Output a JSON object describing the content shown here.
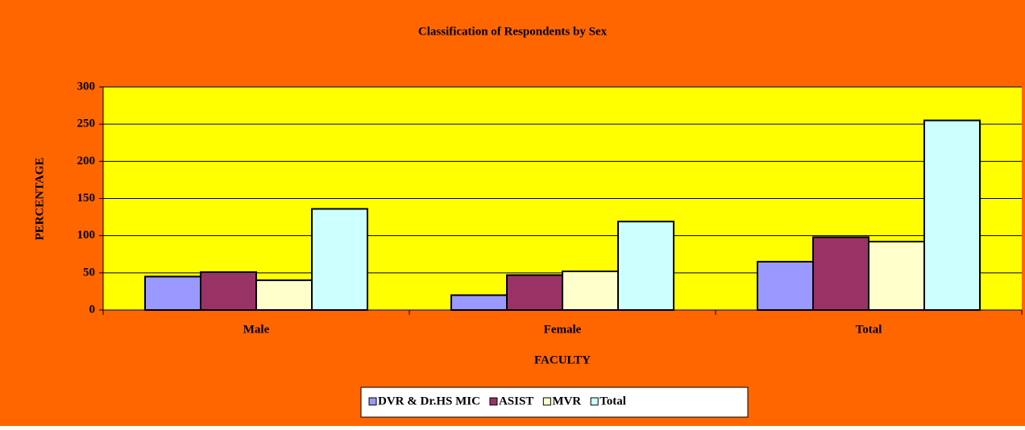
{
  "chart_data": {
    "type": "bar",
    "title": "Classification of Respondents by Sex",
    "x_label": "FACULTY",
    "y_label": "PERCENTAGE",
    "categories": [
      "Male",
      "Female",
      "Total"
    ],
    "series": [
      {
        "name": "DVR & Dr.HS MIC",
        "color": "#9999ff",
        "values": [
          45,
          20,
          65
        ]
      },
      {
        "name": "ASIST",
        "color": "#993366",
        "values": [
          51,
          47,
          98
        ]
      },
      {
        "name": "MVR",
        "color": "#ffffcc",
        "values": [
          40,
          52,
          92
        ]
      },
      {
        "name": "Total",
        "color": "#ccffff",
        "values": [
          136,
          119,
          255
        ]
      }
    ],
    "ylim": [
      0,
      300
    ],
    "yticks": [
      0,
      50,
      100,
      150,
      200,
      250,
      300
    ],
    "grid": true,
    "legend": "bottom"
  }
}
